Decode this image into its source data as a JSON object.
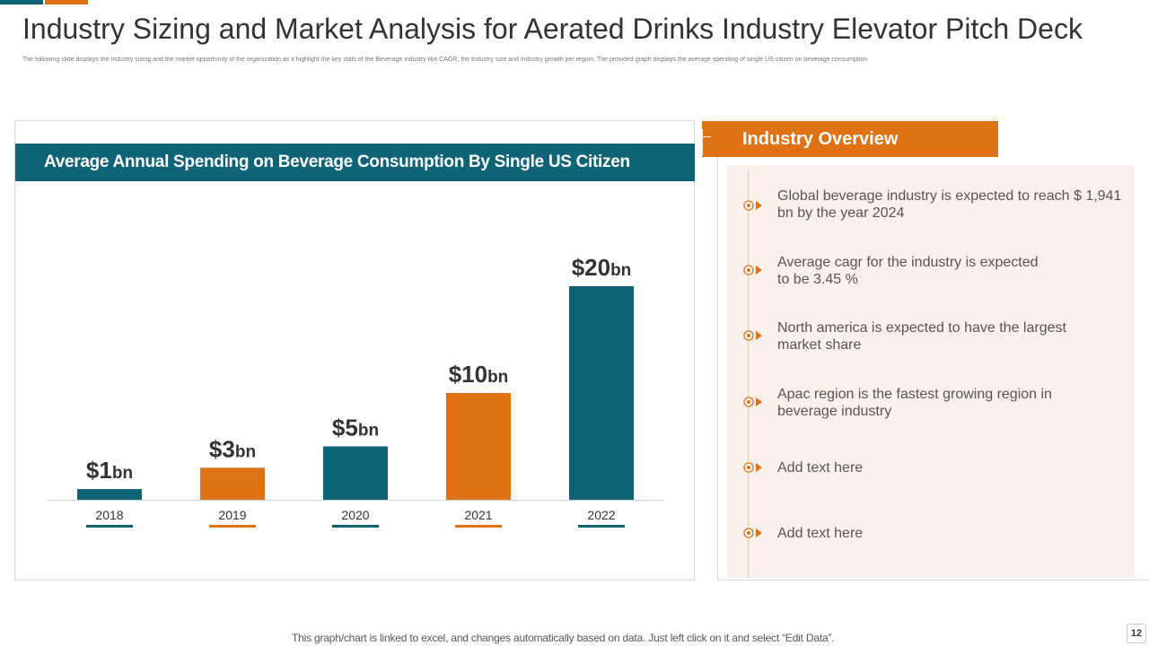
{
  "title": "Industry Sizing and Market Analysis for Aerated Drinks Industry Elevator Pitch Deck",
  "subtitle": "The following slide displays the Industry sizing and the market opportunity of the organization as it highlight the key stats of the Beverage industry like CAGR, the Industry size and Industry growth per region. The provided graph displays the average spending of single US citizen on beverage consumption",
  "chart_header": "Average Annual Spending on Beverage Consumption By  Single US Citizen",
  "chart_data": {
    "type": "bar",
    "title": "Average Annual Spending on Beverage Consumption By  Single US Citizen",
    "categories": [
      "2018",
      "2019",
      "2020",
      "2021",
      "2022"
    ],
    "values": [
      1,
      3,
      5,
      10,
      20
    ],
    "value_labels": [
      {
        "main": "$1",
        "unit": "bn"
      },
      {
        "main": "$3",
        "unit": "bn"
      },
      {
        "main": "$5",
        "unit": "bn"
      },
      {
        "main": "$10",
        "unit": "bn"
      },
      {
        "main": "$20",
        "unit": "bn"
      }
    ],
    "bar_colors": [
      "#0f6377",
      "#e07216",
      "#0f6377",
      "#e07216",
      "#0f6377"
    ],
    "xlabel": "",
    "ylabel": "",
    "ylim": [
      0,
      20
    ]
  },
  "overview": {
    "title": "Industry Overview",
    "items": [
      "Global beverage industry  is expected to reach $ 1,941 bn by the year 2024",
      "Average cagr for the industry is expected to be 3.45 %",
      "North america is expected to have the largest market share",
      "Apac region is the fastest growing region in beverage industry",
      "Add text here",
      "Add text here"
    ]
  },
  "colors": {
    "teal": "#0f6377",
    "orange": "#e07216",
    "panel_bg": "#fbf1ea"
  },
  "footnote": "This graph/chart is linked to excel,  and changes automatically based on data. Just left click on it and select “Edit Data”.",
  "page_number": "12"
}
